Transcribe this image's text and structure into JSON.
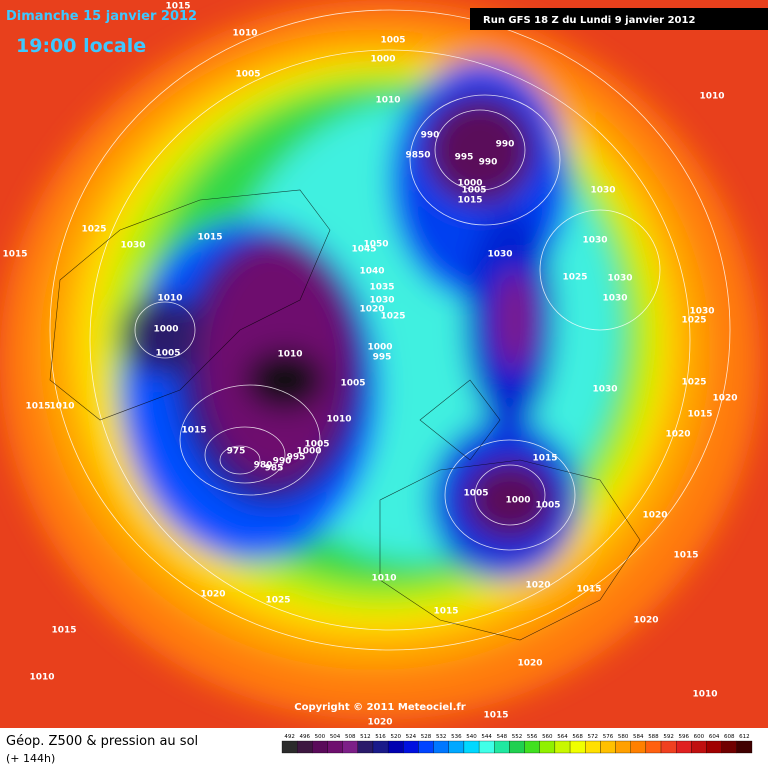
{
  "header": {
    "date": "Dimanche 15 janvier 2012",
    "time": "19:00 locale",
    "run": "Run GFS 18 Z du Lundi 9 janvier 2012"
  },
  "copyright": "Copyright © 2011 Meteociel.fr",
  "footer": {
    "title": "Géop. Z500 & pression au sol",
    "lead": "(+ 144h)"
  },
  "scale_values": [
    492,
    496,
    500,
    504,
    508,
    512,
    516,
    520,
    524,
    528,
    532,
    536,
    540,
    544,
    548,
    552,
    556,
    560,
    564,
    568,
    572,
    576,
    580,
    584,
    588,
    592,
    596,
    600,
    604,
    608,
    612
  ],
  "scale_colors": [
    "#2b2b2b",
    "#3d1740",
    "#5a0a5a",
    "#6e0f6e",
    "#7d1f88",
    "#2a1a6a",
    "#1a1a8a",
    "#0000b0",
    "#0010e0",
    "#0044ff",
    "#0077ff",
    "#00a8ff",
    "#00d8ff",
    "#40ffe8",
    "#20e8a0",
    "#20d050",
    "#40e020",
    "#90f000",
    "#c8f800",
    "#f0ff00",
    "#ffe000",
    "#ffc000",
    "#ffa000",
    "#ff8000",
    "#ff6010",
    "#f04020",
    "#e02020",
    "#c01010",
    "#a00000",
    "#700000",
    "#400000"
  ],
  "pressure_labels": [
    1015,
    1010,
    1005,
    1000,
    1005,
    1010,
    1010,
    990,
    990,
    9850,
    995,
    990,
    1000,
    1005,
    1015,
    1030,
    1025,
    1015,
    1030,
    1045,
    1050,
    1030,
    1030,
    1015,
    1040,
    1025,
    1030,
    1035,
    1030,
    1010,
    1030,
    1020,
    1025,
    1030,
    1025,
    1000,
    1000,
    995,
    1005,
    1010,
    1005,
    1030,
    1025,
    1020,
    1015,
    1010,
    1015,
    1010,
    1015,
    1020,
    1005,
    975,
    1000,
    995,
    990,
    985,
    980,
    1015,
    1005,
    1000,
    1005,
    1020,
    1015,
    1010,
    1020,
    1015,
    1020,
    1025,
    1015,
    1015,
    1020,
    1020,
    1010,
    1010,
    1015,
    1020
  ]
}
